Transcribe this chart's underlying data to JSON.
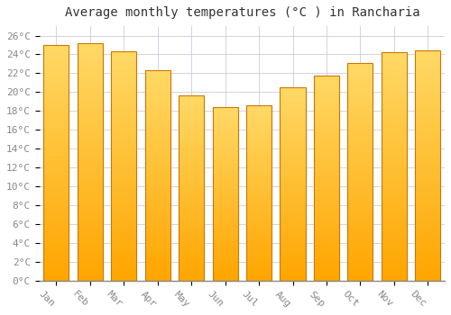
{
  "title": "Average monthly temperatures (°C ) in Rancharia",
  "months": [
    "Jan",
    "Feb",
    "Mar",
    "Apr",
    "May",
    "Jun",
    "Jul",
    "Aug",
    "Sep",
    "Oct",
    "Nov",
    "Dec"
  ],
  "values": [
    25.0,
    25.2,
    24.3,
    22.3,
    19.7,
    18.4,
    18.6,
    20.5,
    21.8,
    23.1,
    24.2,
    24.4
  ],
  "bar_color_bottom": "#FFA500",
  "bar_color_top": "#FFD966",
  "bar_edge_color": "#CC7700",
  "ylim": [
    0,
    27
  ],
  "ytick_step": 2,
  "background_color": "#FFFFFF",
  "grid_color": "#CCCCDD",
  "title_fontsize": 10,
  "tick_fontsize": 8,
  "tick_color": "#888888",
  "label_rotation": -45
}
